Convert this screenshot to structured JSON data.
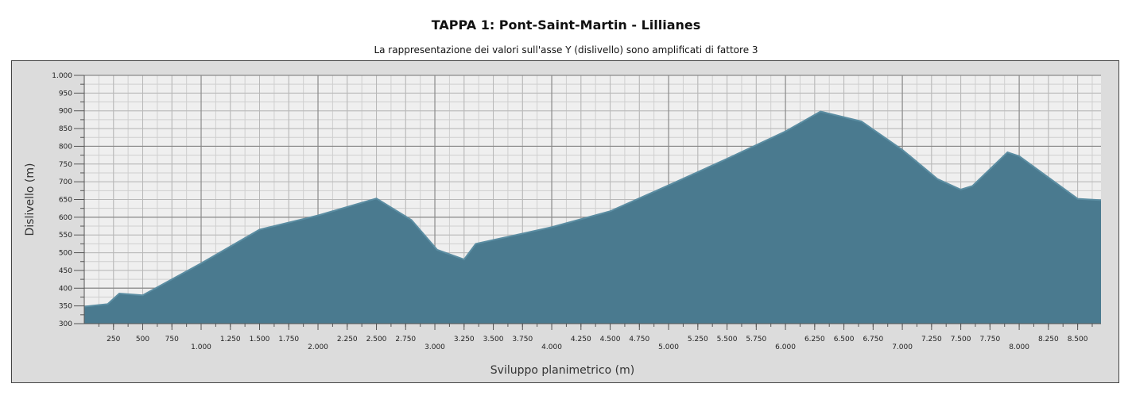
{
  "chart_data": {
    "type": "area",
    "title": "TAPPA 1: Pont-Saint-Martin - Lillianes",
    "subtitle": "La rappresentazione dei valori sull'asse Y (dislivello) sono amplificati di fattore 3",
    "xlabel": "Sviluppo planimetrico (m)",
    "ylabel": "Dislivello (m)",
    "xlim": [
      0,
      8700
    ],
    "ylim": [
      300,
      1000
    ],
    "grid": true,
    "fill_color": "#4a7a8f",
    "line_color": "#5b8da2",
    "plot_background": "#efefef",
    "y_ticks": [
      "300",
      "350",
      "400",
      "450",
      "500",
      "550",
      "600",
      "650",
      "700",
      "750",
      "800",
      "850",
      "900",
      "950",
      "1.000"
    ],
    "y_tick_values": [
      300,
      350,
      400,
      450,
      500,
      550,
      600,
      650,
      700,
      750,
      800,
      850,
      900,
      950,
      1000
    ],
    "x_ticks_minor": [
      {
        "v": 250,
        "label": "250"
      },
      {
        "v": 500,
        "label": "500"
      },
      {
        "v": 750,
        "label": "750"
      },
      {
        "v": 1250,
        "label": "1.250"
      },
      {
        "v": 1500,
        "label": "1.500"
      },
      {
        "v": 1750,
        "label": "1.750"
      },
      {
        "v": 2250,
        "label": "2.250"
      },
      {
        "v": 2500,
        "label": "2.500"
      },
      {
        "v": 2750,
        "label": "2.750"
      },
      {
        "v": 3250,
        "label": "3.250"
      },
      {
        "v": 3500,
        "label": "3.500"
      },
      {
        "v": 3750,
        "label": "3.750"
      },
      {
        "v": 4250,
        "label": "4.250"
      },
      {
        "v": 4500,
        "label": "4.500"
      },
      {
        "v": 4750,
        "label": "4.750"
      },
      {
        "v": 5250,
        "label": "5.250"
      },
      {
        "v": 5500,
        "label": "5.500"
      },
      {
        "v": 5750,
        "label": "5.750"
      },
      {
        "v": 6250,
        "label": "6.250"
      },
      {
        "v": 6500,
        "label": "6.500"
      },
      {
        "v": 6750,
        "label": "6.750"
      },
      {
        "v": 7250,
        "label": "7.250"
      },
      {
        "v": 7500,
        "label": "7.500"
      },
      {
        "v": 7750,
        "label": "7.750"
      },
      {
        "v": 8250,
        "label": "8.250"
      },
      {
        "v": 8500,
        "label": "8.500"
      }
    ],
    "x_ticks_major": [
      {
        "v": 1000,
        "label": "1.000"
      },
      {
        "v": 2000,
        "label": "2.000"
      },
      {
        "v": 3000,
        "label": "3.000"
      },
      {
        "v": 4000,
        "label": "4.000"
      },
      {
        "v": 5000,
        "label": "5.000"
      },
      {
        "v": 6000,
        "label": "6.000"
      },
      {
        "v": 7000,
        "label": "7.000"
      },
      {
        "v": 8000,
        "label": "8.000"
      }
    ],
    "x": [
      0,
      200,
      300,
      500,
      1000,
      1500,
      2000,
      2500,
      2800,
      3020,
      3250,
      3350,
      4000,
      4500,
      5000,
      5500,
      6000,
      6300,
      6650,
      7000,
      7300,
      7500,
      7600,
      7900,
      8000,
      8500,
      8700
    ],
    "y": [
      348,
      355,
      385,
      380,
      470,
      565,
      605,
      653,
      592,
      508,
      481,
      525,
      572,
      617,
      690,
      765,
      842,
      898,
      870,
      790,
      708,
      678,
      688,
      783,
      772,
      652,
      648
    ]
  }
}
